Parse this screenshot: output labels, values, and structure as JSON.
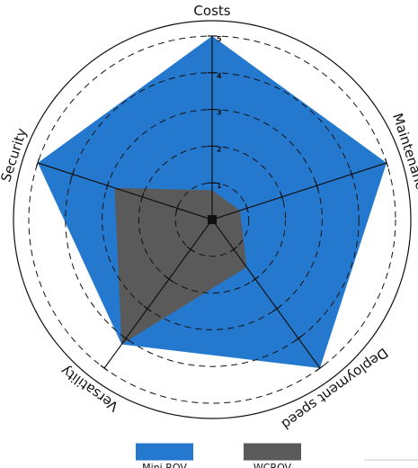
{
  "chart_data": {
    "type": "radar",
    "title": "",
    "axes": [
      "Costs",
      "Maintenance",
      "Deployment speed",
      "Versatility",
      "Security"
    ],
    "rlim": [
      0,
      5
    ],
    "ticks": [
      "1",
      "2",
      "3",
      "4",
      "5"
    ],
    "grid": "dashed circles",
    "legend": "bottom",
    "series": [
      {
        "name": "Mini ROV",
        "values": [
          5,
          5,
          5,
          4.2,
          5
        ],
        "color": "#2479cf"
      },
      {
        "name": "WCROV",
        "values": [
          0.8,
          0.8,
          1.6,
          4.2,
          2.8
        ],
        "color": "#5a5a5a"
      }
    ]
  }
}
